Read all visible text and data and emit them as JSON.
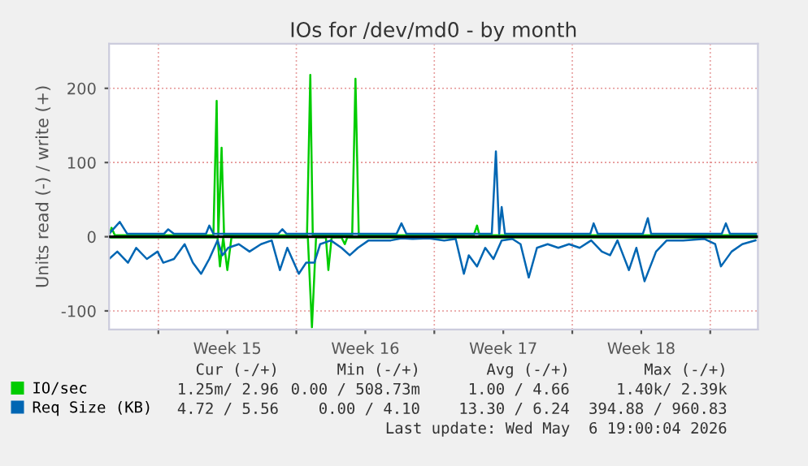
{
  "chart_data": {
    "type": "line",
    "title": "IOs for /dev/md0 - by month",
    "ylabel": "Units read (-) / write (+)",
    "xlim": [
      "2026-04-03T12:00",
      "2026-05-06T10:00"
    ],
    "ylim": [
      -125,
      260
    ],
    "xticks": [
      {
        "value": "2026-04-06",
        "label": null
      },
      {
        "value": "2026-04-09T12:00",
        "label": "Week 15"
      },
      {
        "value": "2026-04-13",
        "label": null
      },
      {
        "value": "2026-04-16T12:00",
        "label": "Week 16"
      },
      {
        "value": "2026-04-20",
        "label": null
      },
      {
        "value": "2026-04-23T12:00",
        "label": "Week 17"
      },
      {
        "value": "2026-04-27",
        "label": null
      },
      {
        "value": "2026-04-30T12:00",
        "label": "Week 18"
      },
      {
        "value": "2026-05-04",
        "label": null
      }
    ],
    "yticks": [
      -100,
      0,
      100,
      200
    ],
    "grid": true,
    "legend": "bottom left",
    "ref_lines": [
      {
        "axis": "y",
        "value": 0,
        "color": "#000000"
      }
    ],
    "series": [
      {
        "color": "#00cc00",
        "x": [
          "2026-04-03T12:00",
          "2026-04-09T00:00",
          "2026-04-09T03:00",
          "2026-04-09T07:00",
          "2026-04-09T12:00",
          "2026-04-09T17:00",
          "2026-04-13T14:00",
          "2026-04-13T19:00",
          "2026-04-14T00:00",
          "2026-04-14T12:00",
          "2026-04-14T15:00",
          "2026-04-14T19:00",
          "2026-04-15T07:00",
          "2026-04-15T11:00",
          "2026-04-15T14:00",
          "2026-05-06T10:00"
        ],
        "values": [
          -1,
          -1,
          -40,
          -1,
          -45,
          -1,
          -1,
          -122,
          -1,
          -1,
          -45,
          -1,
          -1,
          -10,
          -1,
          -1
        ]
      },
      {
        "name": "IO/sec",
        "color": "#00cc00",
        "x": [
          "2026-04-03T12:00",
          "2026-04-03T15:00",
          "2026-04-03T19:00",
          "2026-04-08T19:00",
          "2026-04-08T23:00",
          "2026-04-09T01:00",
          "2026-04-09T05:00",
          "2026-04-09T08:00",
          "2026-04-13T13:00",
          "2026-04-13T17:00",
          "2026-04-13T20:00",
          "2026-04-15T20:00",
          "2026-04-16T00:00",
          "2026-04-16T04:00",
          "2026-04-22T00:00",
          "2026-04-22T04:00",
          "2026-04-22T07:00",
          "2026-05-06T10:00"
        ],
        "values": [
          2,
          12,
          2,
          2,
          183,
          2,
          120,
          2,
          2,
          218,
          2,
          2,
          213,
          2,
          2,
          15,
          2,
          2
        ]
      },
      {
        "color": "#0066b3",
        "x": [
          "2026-04-03T12:00",
          "2026-04-03T22:00",
          "2026-04-04T11:00",
          "2026-04-04T21:00",
          "2026-04-05T10:00",
          "2026-04-05T23:00",
          "2026-04-06T06:00",
          "2026-04-06T19:00",
          "2026-04-07T08:00",
          "2026-04-07T18:00",
          "2026-04-08T04:00",
          "2026-04-08T14:00",
          "2026-04-09T00:00",
          "2026-04-09T06:00",
          "2026-04-09T13:00",
          "2026-04-10T02:00",
          "2026-04-10T15:00",
          "2026-04-11T05:00",
          "2026-04-11T18:00",
          "2026-04-12T04:00",
          "2026-04-12T13:00",
          "2026-04-13T03:00",
          "2026-04-13T12:00",
          "2026-04-13T22:00",
          "2026-04-14T05:00",
          "2026-04-14T18:00",
          "2026-04-15T07:00",
          "2026-04-15T17:00",
          "2026-04-16T03:00",
          "2026-04-16T16:00",
          "2026-04-17T06:00",
          "2026-04-17T19:00",
          "2026-04-18T08:00",
          "2026-04-18T21:00",
          "2026-04-19T17:00",
          "2026-04-20T12:00",
          "2026-04-21T02:00",
          "2026-04-21T12:00",
          "2026-04-21T18:00",
          "2026-04-22T04:00",
          "2026-04-22T14:00",
          "2026-04-23T00:00",
          "2026-04-23T10:00",
          "2026-04-23T23:00",
          "2026-04-24T09:00",
          "2026-04-24T19:00",
          "2026-04-25T05:00",
          "2026-04-25T18:00",
          "2026-04-26T07:00",
          "2026-04-26T20:00",
          "2026-04-27T09:00",
          "2026-04-27T23:00",
          "2026-04-28T12:00",
          "2026-04-28T22:00",
          "2026-04-29T07:00",
          "2026-04-29T21:00",
          "2026-04-30T06:00",
          "2026-04-30T16:00",
          "2026-05-01T06:00",
          "2026-05-01T19:00",
          "2026-05-02T15:00",
          "2026-05-03T17:00",
          "2026-05-04T06:00",
          "2026-05-04T13:00",
          "2026-05-05T02:00",
          "2026-05-05T15:00",
          "2026-05-06T07:00"
        ],
        "values": [
          -30,
          -20,
          -35,
          -15,
          -30,
          -20,
          -35,
          -30,
          -10,
          -35,
          -50,
          -30,
          -5,
          -25,
          -15,
          -10,
          -20,
          -10,
          -5,
          -45,
          -15,
          -50,
          -35,
          -35,
          -10,
          -5,
          -15,
          -25,
          -15,
          -5,
          -5,
          -5,
          -2,
          -3,
          -2,
          -5,
          -3,
          -50,
          -25,
          -40,
          -15,
          -30,
          -5,
          -3,
          -10,
          -55,
          -15,
          -10,
          -15,
          -10,
          -15,
          -5,
          -20,
          -25,
          -5,
          -45,
          -15,
          -60,
          -20,
          -5,
          -5,
          -3,
          -10,
          -40,
          -20,
          -10,
          -5
        ]
      },
      {
        "name": "Req Size (KB)",
        "color": "#0066b3",
        "x": [
          "2026-04-03T12:00",
          "2026-04-04T01:00",
          "2026-04-04T10:00",
          "2026-04-06T07:00",
          "2026-04-06T12:00",
          "2026-04-06T19:00",
          "2026-04-08T10:00",
          "2026-04-08T14:00",
          "2026-04-08T19:00",
          "2026-04-12T02:00",
          "2026-04-12T07:00",
          "2026-04-12T12:00",
          "2026-04-18T02:00",
          "2026-04-18T08:00",
          "2026-04-18T14:00",
          "2026-04-22T22:00",
          "2026-04-23T03:00",
          "2026-04-23T07:00",
          "2026-04-23T10:00",
          "2026-04-23T14:00",
          "2026-04-27T22:00",
          "2026-04-28T02:00",
          "2026-04-28T07:00",
          "2026-04-30T14:00",
          "2026-04-30T20:00",
          "2026-05-01T00:00",
          "2026-05-04T14:00",
          "2026-05-04T19:00",
          "2026-05-05T00:00",
          "2026-05-06T10:00"
        ],
        "values": [
          4,
          20,
          4,
          4,
          10,
          4,
          4,
          15,
          4,
          4,
          10,
          4,
          4,
          18,
          4,
          4,
          115,
          4,
          40,
          4,
          4,
          18,
          4,
          4,
          25,
          4,
          4,
          18,
          4,
          4
        ]
      }
    ],
    "annotations": [
      "Cur (-/+)",
      "Min (-/+)",
      "Avg (-/+)",
      "Max (-/+)",
      "1.25m/ 2.96",
      "0.00 / 508.73m",
      "1.00 / 4.66",
      "1.40k/ 2.39k",
      "4.72 / 5.56",
      "0.00 / 4.10",
      "13.30 / 6.24",
      "394.88 / 960.83",
      "Last update: Wed May  6 19:00:04 2026"
    ]
  }
}
